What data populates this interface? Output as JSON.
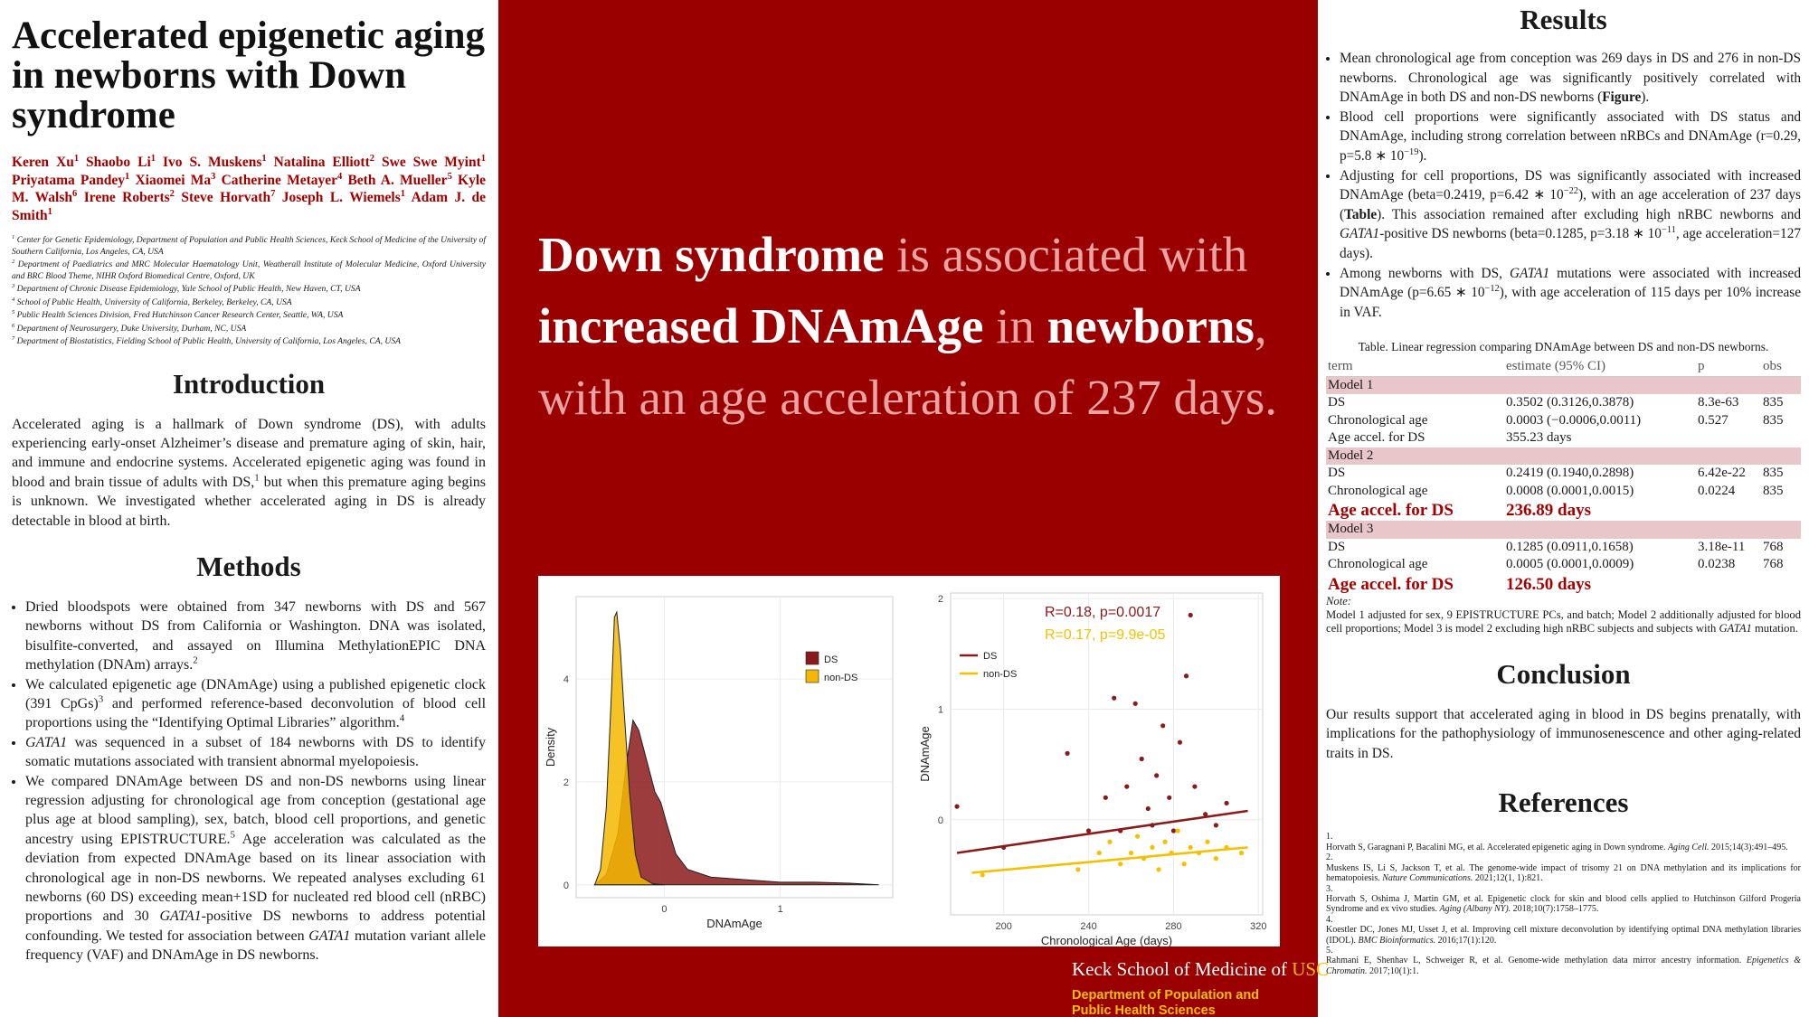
{
  "left": {
    "title": "Accelerated epigenetic aging in newborns with Down syndrome",
    "authors": [
      {
        "name": "Keren Xu",
        "sup": "1"
      },
      {
        "name": "Shaobo Li",
        "sup": "1"
      },
      {
        "name": "Ivo S. Muskens",
        "sup": "1"
      },
      {
        "name": "Natalina Elliott",
        "sup": "2"
      },
      {
        "name": "Swe Swe Myint",
        "sup": "1"
      },
      {
        "name": "Priyatama Pandey",
        "sup": "1"
      },
      {
        "name": "Xiaomei Ma",
        "sup": "3"
      },
      {
        "name": "Catherine Metayer",
        "sup": "4"
      },
      {
        "name": "Beth A. Mueller",
        "sup": "5"
      },
      {
        "name": "Kyle M. Walsh",
        "sup": "6"
      },
      {
        "name": "Irene Roberts",
        "sup": "2"
      },
      {
        "name": "Steve Horvath",
        "sup": "7"
      },
      {
        "name": "Joseph L. Wiemels",
        "sup": "1"
      },
      {
        "name": "Adam J. de Smith",
        "sup": "1"
      }
    ],
    "affiliations": [
      {
        "sup": "1",
        "text": "Center for Genetic Epidemiology, Department of Population and Public Health Sciences, Keck School of Medicine of the University of Southern California, Los Angeles, CA, USA"
      },
      {
        "sup": "2",
        "text": "Department of Paediatrics and MRC Molecular Haematology Unit, Weatherall Institute of Molecular Medicine, Oxford University and BRC Blood Theme, NIHR Oxford Biomedical Centre, Oxford, UK"
      },
      {
        "sup": "3",
        "text": "Department of Chronic Disease Epidemiology, Yale School of Public Health, New Haven, CT, USA"
      },
      {
        "sup": "4",
        "text": "School of Public Health, University of California, Berkeley, Berkeley, CA, USA"
      },
      {
        "sup": "5",
        "text": "Public Health Sciences Division, Fred Hutchinson Cancer Research Center, Seattle, WA, USA"
      },
      {
        "sup": "6",
        "text": "Department of Neurosurgery, Duke University, Durham, NC, USA"
      },
      {
        "sup": "7",
        "text": "Department of Biostatistics, Fielding School of Public Health, University of California, Los Angeles, CA, USA"
      }
    ],
    "introduction": {
      "heading": "Introduction",
      "text": [
        "Accelerated aging is a hallmark of Down syndrome (DS), with adults experiencing early-onset Alzheimer’s disease and premature aging of skin, hair, and immune and endocrine systems. Accelerated epigenetic aging was found in blood and brain tissue of adults with DS,",
        {
          "text": "1",
          "sup": true
        },
        " but when this premature aging begins is unknown. We investigated whether accelerated aging in DS is already detectable in blood at birth."
      ]
    },
    "methods": {
      "heading": "Methods",
      "bullets": [
        [
          "Dried bloodspots were obtained from 347 newborns with DS and 567 newborns without DS from California or Washington. DNA was isolated, bisulfite-converted, and assayed on Illumina MethylationEPIC DNA methylation (DNAm) arrays.",
          {
            "text": "2",
            "sup": true
          }
        ],
        [
          "We calculated epigenetic age (DNAmAge) using a published epigenetic clock (391 CpGs)",
          {
            "text": "3",
            "sup": true
          },
          " and performed reference-based deconvolution of blood cell proportions using the “Identifying Optimal Libraries” algorithm.",
          {
            "text": "4",
            "sup": true
          }
        ],
        [
          {
            "text": "GATA1",
            "i": true
          },
          " was sequenced in a subset of 184 newborns with DS to identify somatic mutations associated with transient abnormal myelopoiesis."
        ],
        [
          "We compared DNAmAge between DS and non-DS newborns using linear regression adjusting for chronological age from conception (gestational age plus age at blood sampling), sex, batch, blood cell proportions, and genetic ancestry using EPISTRUCTURE.",
          {
            "text": "5",
            "sup": true
          },
          " Age acceleration was calculated as the deviation from expected DNAmAge based on its linear association with chronological age in non-DS newborns. We repeated analyses excluding 61 newborns (60 DS) exceeding mean+1SD for nucleated red blood cell (nRBC) proportions and 30 ",
          {
            "text": "GATA1",
            "i": true
          },
          "-positive DS newborns to address potential confounding. We tested for association between ",
          {
            "text": "GATA1",
            "i": true
          },
          " mutation variant allele frequency (VAF) and DNAmAge in DS newborns."
        ]
      ]
    }
  },
  "middle": {
    "headline": [
      {
        "text": "Down syndrome",
        "b": true
      },
      " is associated with ",
      {
        "text": "increased DNAmAge",
        "b": true
      },
      " in ",
      {
        "text": "newborns",
        "b": true
      },
      ", with an age acceleration of 237 days."
    ],
    "logo": {
      "school": "Keck School of Medicine of ",
      "usc": "USC",
      "department": "Department of Population and Public Health Sciences"
    }
  },
  "chart_data": [
    {
      "type": "area",
      "xlabel": "DNAmAge",
      "ylabel": "Density",
      "xlim": [
        -0.76,
        1.97
      ],
      "ylim": [
        -0.25,
        5.6
      ],
      "xticks": [
        0,
        1
      ],
      "yticks": [
        0,
        2,
        4
      ],
      "grid": true,
      "legend": "right",
      "series": [
        {
          "name": "DS",
          "color": "#8b1a1a",
          "x": [
            -0.6,
            -0.5,
            -0.4,
            -0.33,
            -0.27,
            -0.22,
            -0.15,
            -0.08,
            -0.03,
            0.02,
            0.1,
            0.2,
            0.4,
            0.7,
            1.0,
            1.3,
            1.6,
            1.85
          ],
          "values": [
            0,
            0.2,
            1.0,
            2.3,
            3.2,
            3.0,
            2.4,
            1.8,
            1.6,
            1.2,
            0.6,
            0.3,
            0.15,
            0.1,
            0.05,
            0.05,
            0.03,
            0
          ]
        },
        {
          "name": "non-DS",
          "color": "#f5b800",
          "x": [
            -0.6,
            -0.55,
            -0.5,
            -0.46,
            -0.43,
            -0.41,
            -0.38,
            -0.35,
            -0.3,
            -0.25,
            -0.2,
            -0.1,
            0
          ],
          "values": [
            0,
            0.3,
            1.5,
            3.5,
            5.2,
            5.3,
            4.6,
            3.5,
            1.8,
            0.6,
            0.15,
            0.02,
            0
          ]
        }
      ]
    },
    {
      "type": "scatter",
      "xlabel": "Chronological Age (days)",
      "ylabel": "DNAmAge",
      "xlim": [
        175,
        322
      ],
      "ylim": [
        -0.86,
        2.05
      ],
      "xticks": [
        200,
        240,
        280,
        320
      ],
      "yticks": [
        0,
        1,
        2
      ],
      "grid": true,
      "legend": "top-left",
      "annotations": [
        "R=0.18, p=0.0017",
        "R=0.17, p=9.9e-05"
      ],
      "series": [
        {
          "name": "DS",
          "color": "#8b1a1a",
          "x": [
            178,
            200,
            230,
            240,
            248,
            252,
            255,
            258,
            262,
            265,
            268,
            270,
            272,
            275,
            278,
            280,
            283,
            286,
            288,
            290,
            295,
            300,
            305
          ],
          "values": [
            0.12,
            -0.25,
            0.6,
            -0.1,
            0.2,
            1.1,
            -0.1,
            0.3,
            1.05,
            0.55,
            0.1,
            -0.05,
            0.4,
            0.85,
            0.2,
            -0.1,
            0.7,
            1.3,
            1.85,
            0.3,
            0.05,
            -0.05,
            0.15
          ],
          "fit": {
            "x": [
              178,
              315
            ],
            "values": [
              -0.3,
              0.08
            ]
          }
        },
        {
          "name": "non-DS",
          "color": "#f5c000",
          "x": [
            190,
            235,
            245,
            250,
            255,
            260,
            263,
            266,
            270,
            273,
            276,
            279,
            282,
            285,
            288,
            292,
            296,
            300,
            305,
            312
          ],
          "values": [
            -0.5,
            -0.45,
            -0.3,
            -0.2,
            -0.4,
            -0.3,
            -0.15,
            -0.35,
            -0.25,
            -0.45,
            -0.2,
            -0.3,
            -0.1,
            -0.4,
            -0.25,
            -0.3,
            -0.2,
            -0.35,
            -0.25,
            -0.3
          ],
          "fit": {
            "x": [
              185,
              315
            ],
            "values": [
              -0.48,
              -0.25
            ]
          }
        }
      ]
    }
  ],
  "right": {
    "results": {
      "heading": "Results",
      "bullets": [
        [
          "Mean chronological age from conception was 269 days in DS and 276 in non-DS newborns. Chronological age was significantly positively correlated with DNAmAge in both DS and non-DS newborns (",
          {
            "text": "Figure",
            "b": true
          },
          ")."
        ],
        [
          "Blood cell proportions were significantly associated with DS status and DNAmAge, including strong correlation between nRBCs and DNAmAge (r=0.29, p=5.8 ∗ 10",
          {
            "text": "−19",
            "sup": true
          },
          ")."
        ],
        [
          "Adjusting for cell proportions, DS was significantly associated with increased DNAmAge (beta=0.2419, p=6.42 ∗ 10",
          {
            "text": "−22",
            "sup": true
          },
          "), with an age acceleration of 237 days (",
          {
            "text": "Table",
            "b": true
          },
          "). This association remained after excluding high nRBC newborns and ",
          {
            "text": "GATA1",
            "i": true
          },
          "-positive DS newborns (beta=0.1285, p=3.18 ∗ 10",
          {
            "text": "−11",
            "sup": true
          },
          ", age acceleration=127 days)."
        ],
        [
          "Among newborns with DS, ",
          {
            "text": "GATA1",
            "i": true
          },
          " mutations were associated with increased DNAmAge (p=6.65 ∗ 10",
          {
            "text": "−12",
            "sup": true
          },
          "), with age acceleration of 115 days per 10% increase in VAF."
        ]
      ]
    },
    "table": {
      "caption": "Table. Linear regression comparing DNAmAge between DS and non-DS newborns.",
      "header": [
        "term",
        "estimate (95% CI)",
        "p",
        "obs"
      ],
      "groups": [
        {
          "name": "Model 1",
          "rows": [
            {
              "cells": [
                "DS",
                "0.3502 (0.3126,0.3878)",
                "8.3e-63",
                835
              ]
            },
            {
              "cells": [
                "Chronological age",
                "0.0003 (−0.0006,0.0011)",
                "0.527",
                835
              ]
            },
            {
              "cells": [
                "Age accel. for DS",
                "355.23 days"
              ]
            }
          ]
        },
        {
          "name": "Model 2",
          "rows": [
            {
              "cells": [
                "DS",
                "0.2419 (0.1940,0.2898)",
                "6.42e-22",
                835
              ]
            },
            {
              "cells": [
                "Chronological age",
                "0.0008 (0.0001,0.0015)",
                "0.0224",
                835
              ]
            },
            {
              "cells": [
                "Age accel. for DS",
                "236.89 days"
              ],
              "emphasis": true
            }
          ]
        },
        {
          "name": "Model 3",
          "rows": [
            {
              "cells": [
                "DS",
                "0.1285 (0.0911,0.1658)",
                "3.18e-11",
                768
              ]
            },
            {
              "cells": [
                "Chronological age",
                "0.0005 (0.0001,0.0009)",
                "0.0238",
                768
              ]
            },
            {
              "cells": [
                "Age accel. for DS",
                "126.50 days"
              ],
              "emphasis": true
            }
          ]
        }
      ],
      "note_label": "Note:",
      "note": [
        "Model 1 adjusted for sex, 9 EPISTRUCTURE PCs, and batch; Model 2 additionally adjusted for blood cell proportions; Model 3 is model 2 excluding high nRBC subjects and subjects with ",
        {
          "text": "GATA1",
          "i": true
        },
        " mutation."
      ]
    },
    "conclusion": {
      "heading": "Conclusion",
      "text": [
        "Our results support that accelerated aging in blood in DS begins prenatally, with implications for the pathophysiology of immunosenescence and other aging-related traits in DS."
      ]
    },
    "references": {
      "heading": "References",
      "items": [
        {
          "num": "1.",
          "text": [
            "Horvath S, Garagnani P, Bacalini MG, et al. Accelerated epigenetic aging in Down syndrome. ",
            {
              "text": "Aging Cell.",
              "i": true
            },
            " 2015;14(3):491–495."
          ]
        },
        {
          "num": "2.",
          "text": [
            "Muskens IS, Li S, Jackson T, et al. The genome-wide impact of trisomy 21 on DNA methylation and its implications for hematopoiesis. ",
            {
              "text": "Nature Communications.",
              "i": true
            },
            " 2021;12(1, 1):821."
          ]
        },
        {
          "num": "3.",
          "text": [
            "Horvath S, Oshima J, Martin GM, et al. Epigenetic clock for skin and blood cells applied to Hutchinson Gilford Progeria Syndrome and ex vivo studies. ",
            {
              "text": "Aging (Albany NY).",
              "i": true
            },
            " 2018;10(7):1758–1775."
          ]
        },
        {
          "num": "4.",
          "text": [
            "Koestler DC, Jones MJ, Usset J, et al. Improving cell mixture deconvolution by identifying optimal DNA methylation libraries (IDOL). ",
            {
              "text": "BMC Bioinformatics.",
              "i": true
            },
            " 2016;17(1):120."
          ]
        },
        {
          "num": "5.",
          "text": [
            "Rahmani E, Shenhav L, Schweiger R, et al. Genome-wide methylation data mirror ancestry information. ",
            {
              "text": "Epigenetics & Chromatin.",
              "i": true
            },
            " 2017;10(1):1."
          ]
        }
      ]
    }
  }
}
